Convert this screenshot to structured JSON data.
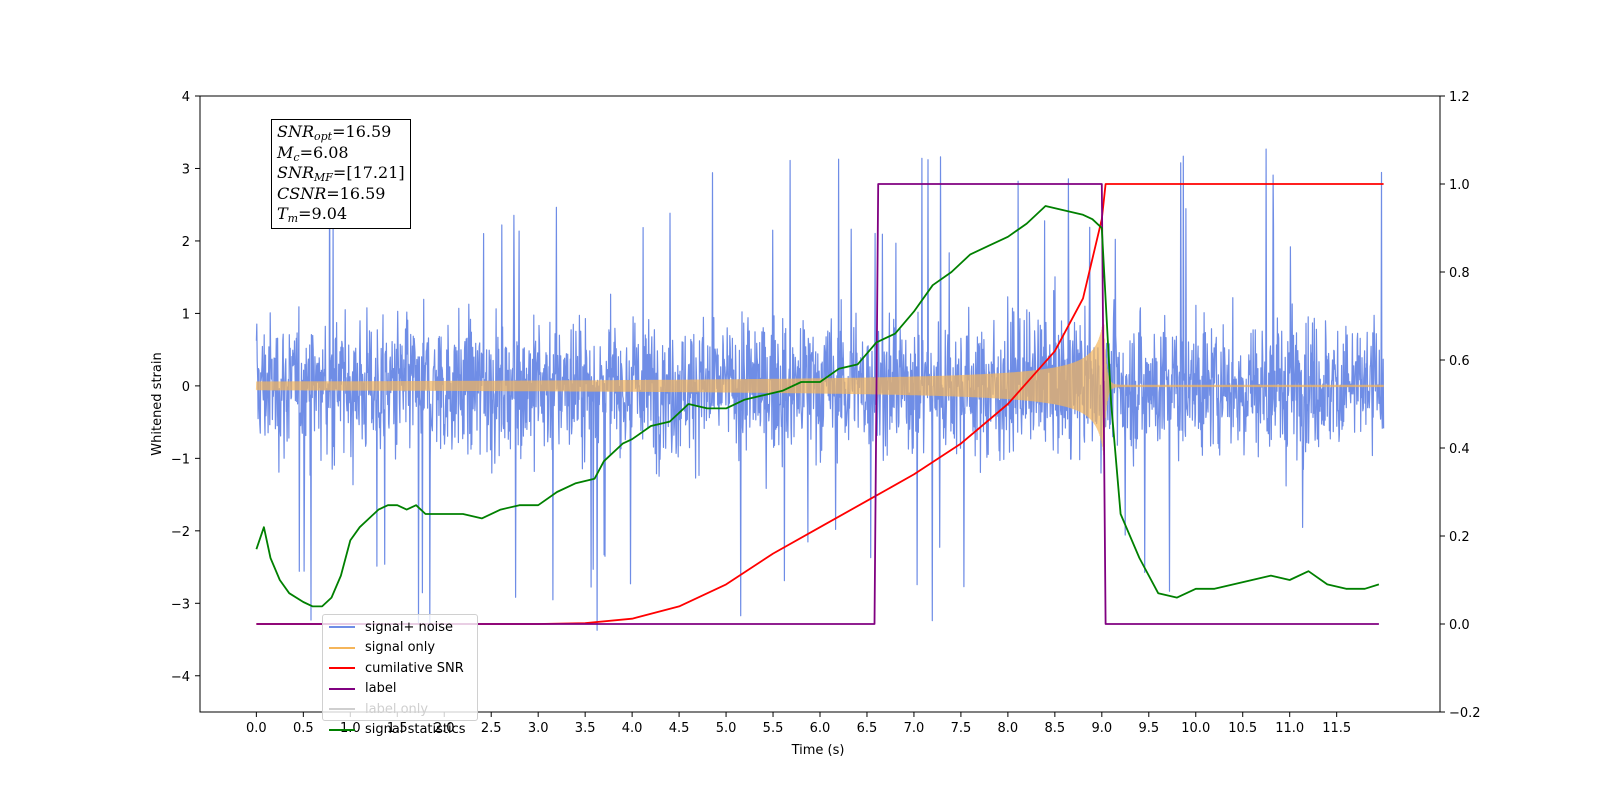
{
  "chart_data": {
    "type": "line",
    "xlabel": "Time (s)",
    "ylabel": "Whitened strain",
    "xlim": [
      -0.6,
      12.6
    ],
    "ylim": [
      -4.5,
      4.0
    ],
    "y2lim": [
      -0.2,
      1.2
    ],
    "xticks": [
      "0.0",
      "0.5",
      "1.0",
      "1.5",
      "2.0",
      "2.5",
      "3.0",
      "3.5",
      "4.0",
      "4.5",
      "5.0",
      "5.5",
      "6.0",
      "6.5",
      "7.0",
      "7.5",
      "8.0",
      "8.5",
      "9.0",
      "9.5",
      "10.0",
      "10.5",
      "11.0",
      "11.5"
    ],
    "yticks": [
      "4",
      "3",
      "2",
      "1",
      "0",
      "−1",
      "−2",
      "−3",
      "−4"
    ],
    "y2ticks": [
      "1.2",
      "1.0",
      "0.8",
      "0.6",
      "0.4",
      "0.2",
      "0.0",
      "−0.2"
    ],
    "grid": false,
    "legend_position": "lower-left",
    "annotation": {
      "lines": [
        {
          "sym": "SNR",
          "sub": "opt",
          "val": "=16.59"
        },
        {
          "sym": "M",
          "sub": "c",
          "val": "=6.08"
        },
        {
          "sym": "SNR",
          "sub": "MF",
          "val": "=[17.21]"
        },
        {
          "sym": "CSNR",
          "sub": "",
          "val": "=16.59"
        },
        {
          "sym": "T",
          "sub": "m",
          "val": "=9.04"
        }
      ]
    },
    "series": [
      {
        "name": "signal+ noise",
        "color": "#6f8de6",
        "axis": "left",
        "kind": "noisy",
        "x_range": [
          0.0,
          12.0
        ],
        "noise_sigma": 0.85,
        "spike_max": 3.4
      },
      {
        "name": "signal only",
        "color": "#f5b55a",
        "axis": "left",
        "kind": "chirp",
        "x_range": [
          0.0,
          12.0
        ],
        "peak_time": 9.02,
        "peak_amp": 0.95
      },
      {
        "name": "cumilative SNR",
        "color": "#ff0000",
        "axis": "right",
        "x": [
          0.0,
          3.0,
          3.5,
          4.0,
          4.5,
          5.0,
          5.5,
          6.0,
          6.5,
          7.0,
          7.5,
          8.0,
          8.5,
          8.8,
          9.0,
          9.04,
          12.0
        ],
        "y": [
          0.0,
          0.0,
          0.002,
          0.012,
          0.04,
          0.09,
          0.16,
          0.22,
          0.28,
          0.34,
          0.41,
          0.5,
          0.62,
          0.74,
          0.92,
          1.0,
          1.0
        ]
      },
      {
        "name": "label",
        "color": "#800080",
        "axis": "right",
        "x": [
          0.0,
          6.58,
          6.62,
          9.0,
          9.04,
          11.95
        ],
        "y": [
          0.0,
          0.0,
          1.0,
          1.0,
          0.0,
          0.0
        ]
      },
      {
        "name": "label only",
        "color": "#cfcfcf",
        "axis": "right",
        "x": [],
        "y": []
      },
      {
        "name": "signal statistics",
        "color": "#008000",
        "axis": "right",
        "x": [
          0.0,
          0.08,
          0.15,
          0.25,
          0.35,
          0.5,
          0.6,
          0.7,
          0.8,
          0.9,
          1.0,
          1.1,
          1.2,
          1.3,
          1.4,
          1.5,
          1.6,
          1.7,
          1.8,
          2.0,
          2.2,
          2.4,
          2.6,
          2.8,
          3.0,
          3.2,
          3.4,
          3.6,
          3.7,
          3.9,
          4.0,
          4.2,
          4.4,
          4.6,
          4.8,
          5.0,
          5.2,
          5.4,
          5.6,
          5.8,
          6.0,
          6.2,
          6.4,
          6.6,
          6.8,
          7.0,
          7.2,
          7.4,
          7.6,
          7.8,
          8.0,
          8.2,
          8.4,
          8.6,
          8.8,
          8.9,
          9.0,
          9.1,
          9.2,
          9.4,
          9.6,
          9.8,
          10.0,
          10.2,
          10.4,
          10.6,
          10.8,
          11.0,
          11.2,
          11.4,
          11.6,
          11.8,
          11.95
        ],
        "y": [
          0.17,
          0.22,
          0.15,
          0.1,
          0.07,
          0.05,
          0.04,
          0.04,
          0.06,
          0.11,
          0.19,
          0.22,
          0.24,
          0.26,
          0.27,
          0.27,
          0.26,
          0.27,
          0.25,
          0.25,
          0.25,
          0.24,
          0.26,
          0.27,
          0.27,
          0.3,
          0.32,
          0.33,
          0.37,
          0.41,
          0.42,
          0.45,
          0.46,
          0.5,
          0.49,
          0.49,
          0.51,
          0.52,
          0.53,
          0.55,
          0.55,
          0.58,
          0.59,
          0.64,
          0.66,
          0.71,
          0.77,
          0.8,
          0.84,
          0.86,
          0.88,
          0.91,
          0.95,
          0.94,
          0.93,
          0.92,
          0.9,
          0.5,
          0.25,
          0.15,
          0.07,
          0.06,
          0.08,
          0.08,
          0.09,
          0.1,
          0.11,
          0.1,
          0.12,
          0.09,
          0.08,
          0.08,
          0.09
        ]
      }
    ]
  }
}
